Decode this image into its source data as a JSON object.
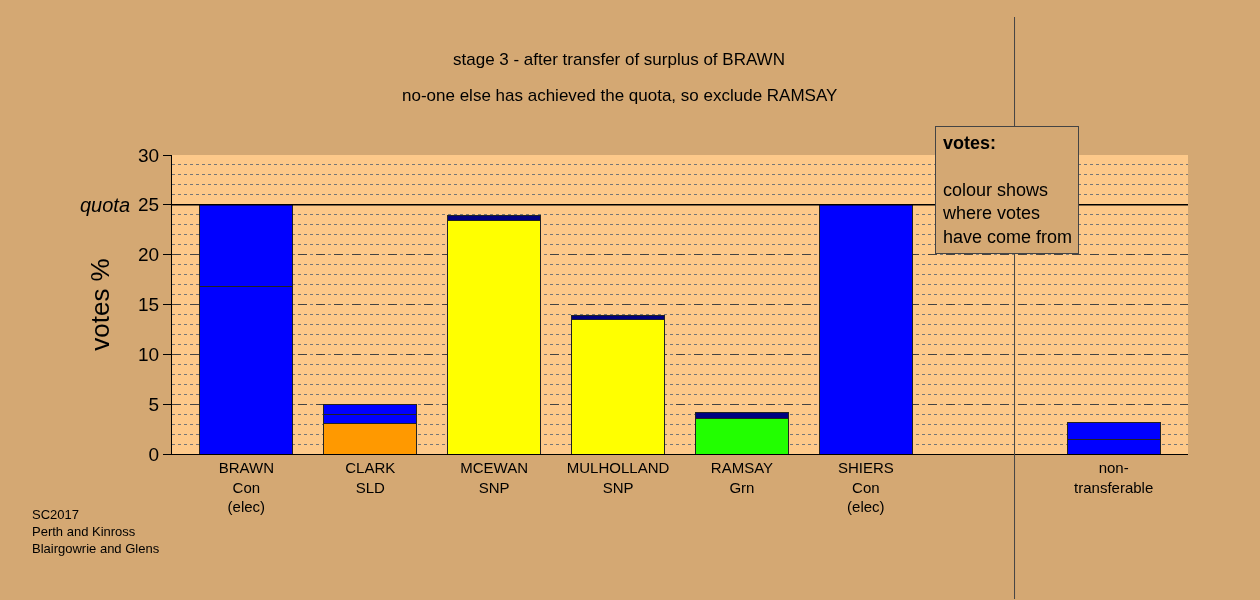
{
  "chart_data": {
    "type": "bar",
    "stacked": true,
    "title": "stage 3 - after transfer of surplus of BRAWN",
    "subtitle": "no-one else has achieved the quota, so exclude RAMSAY",
    "ylabel": "votes %",
    "categories": [
      "BRAWN\nCon\n(elec)",
      "CLARK\nSLD",
      "MCEWAN\nSNP",
      "MULHOLLAND\nSNP",
      "RAMSAY\nGrn",
      "SHIERS\nCon\n(elec)",
      null,
      "non-\ntransferable"
    ],
    "series": [
      {
        "values": [
          16.8,
          3.1,
          23.4,
          13.5,
          3.6,
          25,
          null,
          1.5
        ],
        "colors": [
          "#0000ff",
          "#ff9900",
          "#ffff00",
          "#ffff00",
          "#22ff00",
          "#0000ff",
          "#0000ff",
          "#0000ff"
        ]
      },
      {
        "values": [
          8.2,
          0.9,
          0.5,
          0.4,
          0.6,
          null,
          null,
          1.7
        ],
        "colors": [
          "#0000ff",
          "#0000ff",
          "#000080",
          "#000080",
          "#000080",
          "#0000ff",
          "#0000ff",
          "#0000ff"
        ]
      },
      {
        "values": [
          null,
          1.0,
          null,
          null,
          null,
          null,
          null,
          null
        ],
        "colors": [
          "#0000ff",
          "#0000ff",
          "#0000ff",
          "#0000ff",
          "#0000ff",
          "#0000ff",
          "#0000ff",
          "#0000ff"
        ]
      }
    ],
    "ylim": [
      0,
      30
    ],
    "yticks": [
      0,
      5,
      10,
      15,
      20,
      25,
      30
    ],
    "grid": "y",
    "ref_lines": [
      {
        "axis": "y",
        "value": 25,
        "label": "quota",
        "color": "#000000",
        "line_style": "solid"
      }
    ],
    "annotations": [
      "votes:",
      "colour shows\nwhere votes\nhave come from",
      "SC2017\nPerth and Kinross\nBlairgowrie and Glens"
    ]
  }
}
